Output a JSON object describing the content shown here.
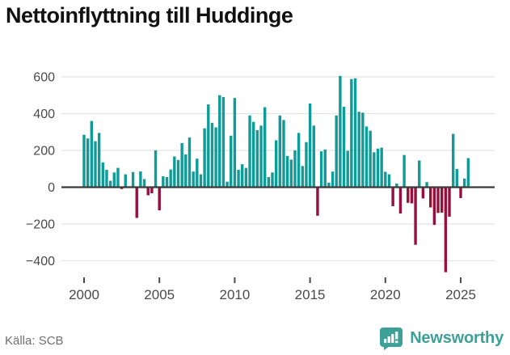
{
  "title": "Nettoinflyttning till Huddinge",
  "source": "Källa: SCB",
  "branding": {
    "name": "Newsworthy",
    "color": "#3da19a"
  },
  "colors": {
    "positive_bar": "#0f9b97",
    "negative_bar": "#96103c",
    "grid": "#e4e4e4",
    "zero_line": "#3a3a3a",
    "axis_text": "#4a4a4a",
    "title_text": "#111111",
    "source_text": "#6f6f6f",
    "background": "#ffffff"
  },
  "chart_data": {
    "type": "bar",
    "title": "Nettoinflyttning till Huddinge",
    "xlabel": "",
    "ylabel": "",
    "start_year": 2000,
    "periods_per_year": 4,
    "x_ticks": [
      2000,
      2005,
      2010,
      2015,
      2020,
      2025
    ],
    "y_ticks": [
      600,
      400,
      200,
      0,
      -200,
      -400
    ],
    "ylim": [
      -480,
      630
    ],
    "grid": true,
    "legend": "none",
    "values": [
      285,
      265,
      360,
      250,
      295,
      135,
      95,
      35,
      80,
      105,
      -10,
      70,
      5,
      82,
      -167,
      86,
      44,
      -44,
      -33,
      200,
      -126,
      59,
      55,
      96,
      167,
      148,
      240,
      178,
      270,
      85,
      155,
      70,
      320,
      450,
      350,
      325,
      500,
      490,
      30,
      280,
      485,
      95,
      125,
      105,
      390,
      355,
      310,
      335,
      435,
      55,
      80,
      255,
      390,
      365,
      170,
      150,
      200,
      295,
      115,
      245,
      455,
      335,
      -155,
      195,
      205,
      25,
      85,
      390,
      605,
      437,
      198,
      588,
      592,
      410,
      405,
      330,
      307,
      190,
      210,
      215,
      84,
      70,
      -103,
      20,
      -143,
      175,
      -85,
      -88,
      -313,
      145,
      -61,
      28,
      -110,
      -205,
      -140,
      -138,
      -462,
      -160,
      290,
      99,
      -59,
      47,
      158
    ]
  }
}
